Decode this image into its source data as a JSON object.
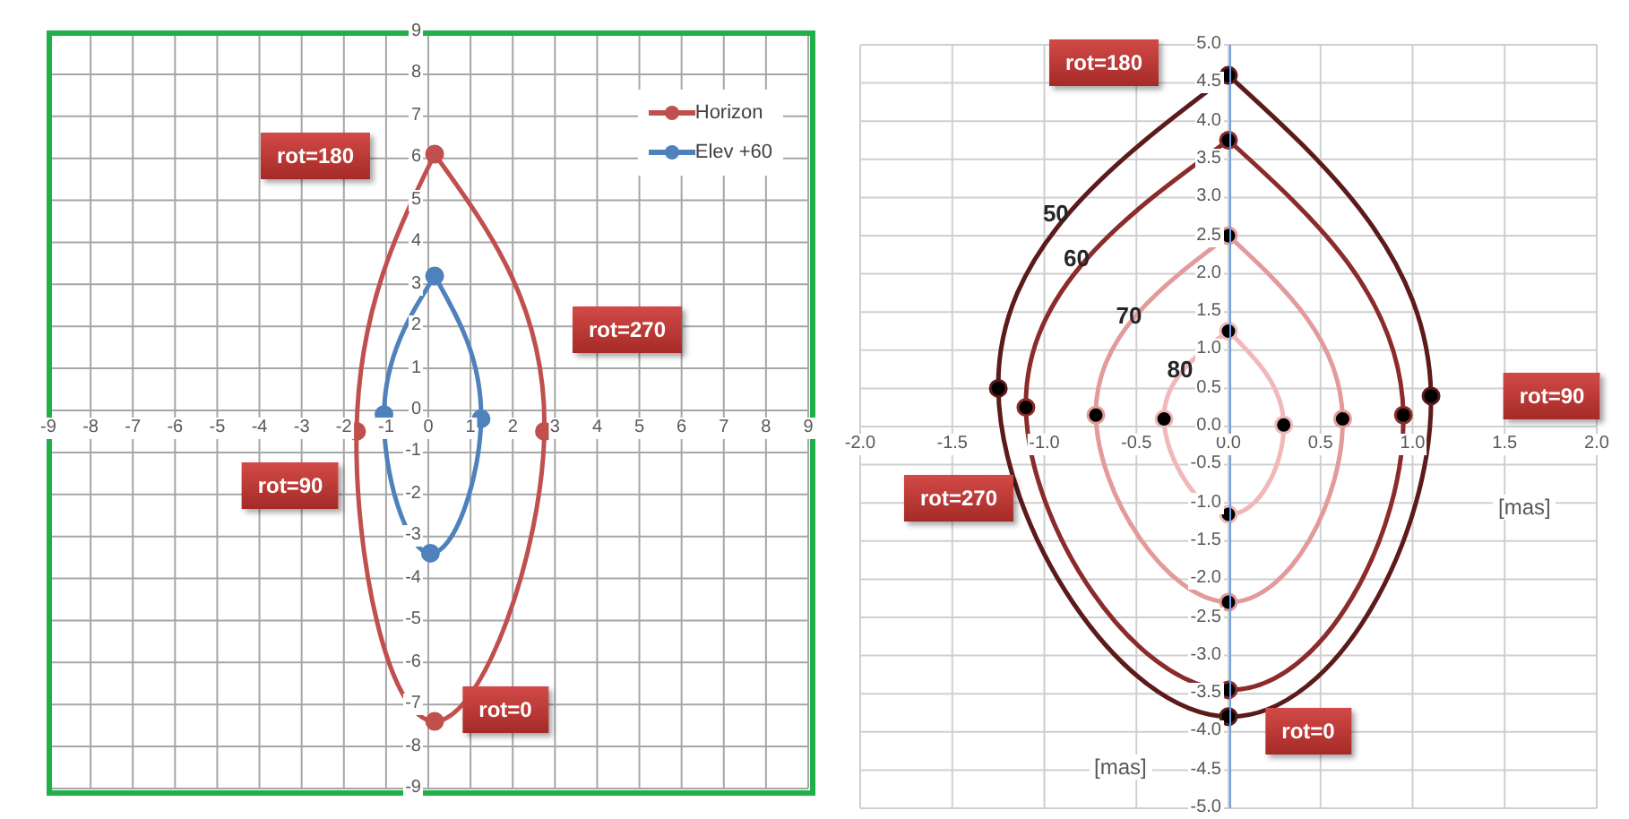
{
  "chart_data": [
    {
      "type": "scatter",
      "xlim": [
        -9,
        9
      ],
      "ylim": [
        -9,
        9
      ],
      "xticks": [
        -9,
        -8,
        -7,
        -6,
        -5,
        -4,
        -3,
        -2,
        -1,
        0,
        1,
        2,
        3,
        4,
        5,
        6,
        7,
        8,
        9
      ],
      "yticks": [
        -9,
        -8,
        -7,
        -6,
        -5,
        -4,
        -3,
        -2,
        -1,
        0,
        1,
        2,
        3,
        4,
        5,
        6,
        7,
        8,
        9
      ],
      "grid": true,
      "legend": "top right",
      "marker": "circle",
      "series": [
        {
          "name": "Horizon",
          "color": "#c0504d",
          "x": [
            0.15,
            2.75,
            0.15,
            -1.7
          ],
          "values": [
            6.1,
            -0.5,
            -7.4,
            -0.5
          ]
        },
        {
          "name": "Elev +60",
          "color": "#4f81bd",
          "x": [
            0.15,
            1.25,
            0.05,
            -1.05
          ],
          "values": [
            3.2,
            -0.2,
            -3.4,
            -0.1
          ]
        }
      ],
      "annotations": [
        "rot=180",
        "rot=270",
        "rot=90",
        "rot=0"
      ]
    },
    {
      "type": "scatter",
      "xlabel": "[mas]",
      "ylabel": "[mas]",
      "xlim": [
        -2,
        2
      ],
      "ylim": [
        -5,
        5
      ],
      "xticks": [
        {
          "value": -2,
          "label": "-2.0"
        },
        {
          "value": -1.5,
          "label": "-1.5"
        },
        {
          "value": -1,
          "label": "-1.0"
        },
        {
          "value": -0.5,
          "label": "-0.5"
        },
        {
          "value": 0,
          "label": "0.0"
        },
        {
          "value": 0.5,
          "label": "0.5"
        },
        {
          "value": 1,
          "label": "1.0"
        },
        {
          "value": 1.5,
          "label": "1.5"
        },
        {
          "value": 2,
          "label": "2.0"
        }
      ],
      "yticks": [
        {
          "value": -5,
          "label": "-5.0"
        },
        {
          "value": -4.5,
          "label": "-4.5"
        },
        {
          "value": -4,
          "label": "-4.0"
        },
        {
          "value": -3.5,
          "label": "-3.5"
        },
        {
          "value": -3,
          "label": "-3.0"
        },
        {
          "value": -2.5,
          "label": "-2.5"
        },
        {
          "value": -2,
          "label": "-2.0"
        },
        {
          "value": -1.5,
          "label": "-1.5"
        },
        {
          "value": -1,
          "label": "-1.0"
        },
        {
          "value": -0.5,
          "label": "-0.5"
        },
        {
          "value": 0,
          "label": "0.0"
        },
        {
          "value": 0.5,
          "label": "0.5"
        },
        {
          "value": 1,
          "label": "1.0"
        },
        {
          "value": 1.5,
          "label": "1.5"
        },
        {
          "value": 2,
          "label": "2.0"
        },
        {
          "value": 2.5,
          "label": "2.5"
        },
        {
          "value": 3,
          "label": "3.0"
        },
        {
          "value": 3.5,
          "label": "3.5"
        },
        {
          "value": 4,
          "label": "4.0"
        },
        {
          "value": 4.5,
          "label": "4.5"
        },
        {
          "value": 5,
          "label": "5.0"
        }
      ],
      "grid": true,
      "marker": "circle",
      "series": [
        {
          "name": "50",
          "color": "#5c1a1a",
          "x": [
            0,
            1.1,
            0,
            -1.25
          ],
          "values": [
            4.6,
            0.4,
            -3.8,
            0.5
          ]
        },
        {
          "name": "60",
          "color": "#8b2b2b",
          "x": [
            0,
            0.95,
            0,
            -1.1
          ],
          "values": [
            3.75,
            0.15,
            -3.45,
            0.25
          ]
        },
        {
          "name": "70",
          "color": "#e39a9a",
          "x": [
            0,
            0.62,
            0,
            -0.72
          ],
          "values": [
            2.5,
            0.1,
            -2.3,
            0.15
          ]
        },
        {
          "name": "80",
          "color": "#f0b8b8",
          "x": [
            0,
            0.3,
            0,
            -0.35
          ],
          "values": [
            1.25,
            0.02,
            -1.15,
            0.1
          ]
        }
      ],
      "annotations": [
        "rot=180",
        "rot=90",
        "rot=270",
        "rot=0"
      ]
    }
  ]
}
